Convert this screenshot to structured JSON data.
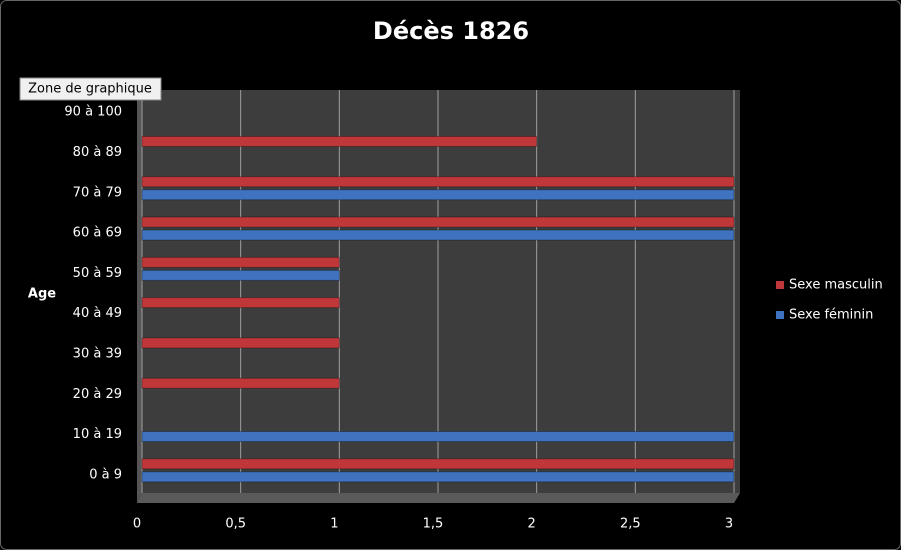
{
  "chart_data": {
    "type": "bar",
    "orientation": "horizontal",
    "title": "Décès 1826",
    "y_label": "Age",
    "categories": [
      "0 à 9",
      "10 à 19",
      "20 à 29",
      "30 à 39",
      "40 à 49",
      "50 à 59",
      "60 à 69",
      "70 à 79",
      "80 à 89",
      "90 à 100"
    ],
    "series": [
      {
        "name": "Sexe masculin",
        "color": "#c0373a",
        "values": [
          3,
          0,
          1,
          1,
          1,
          1,
          3,
          3,
          2,
          0
        ]
      },
      {
        "name": "Sexe féminin",
        "color": "#3f73c0",
        "values": [
          3,
          3,
          0,
          0,
          0,
          1,
          3,
          3,
          0,
          0
        ]
      }
    ],
    "xlim": [
      0,
      3
    ],
    "xticks": [
      0,
      {
        "value": 0.5,
        "label": "0,5"
      },
      1,
      {
        "value": 1.5,
        "label": "1,5"
      },
      2,
      {
        "value": 2.5,
        "label": "2,5"
      },
      3
    ],
    "grid": true,
    "legend": "right",
    "tooltip": "Zone de graphique"
  }
}
